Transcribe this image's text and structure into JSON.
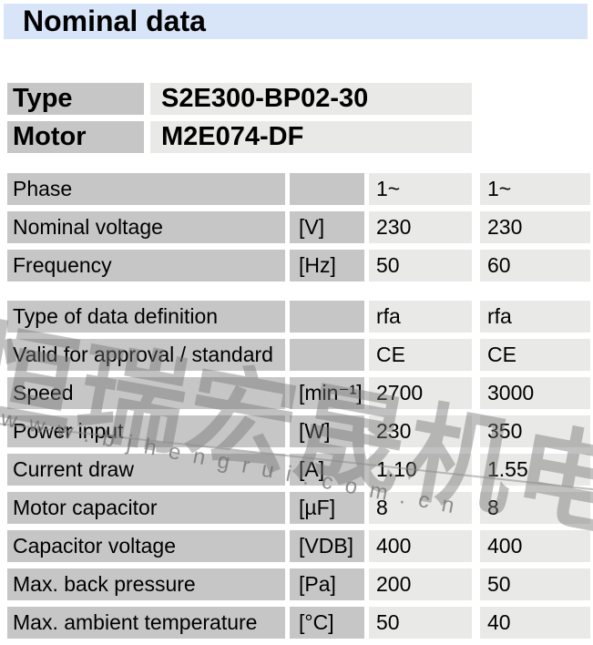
{
  "title": "Nominal data",
  "identification": {
    "rows": [
      {
        "label": "Type",
        "value": "S2E300-BP02-30"
      },
      {
        "label": "Motor",
        "value": "M2E074-DF"
      }
    ]
  },
  "electrical": {
    "rows": [
      {
        "label": "Phase",
        "unit": "",
        "v1": "1~",
        "v2": "1~"
      },
      {
        "label": "Nominal voltage",
        "unit": "[V]",
        "v1": "230",
        "v2": "230"
      },
      {
        "label": "Frequency",
        "unit": "[Hz]",
        "v1": "50",
        "v2": "60"
      }
    ]
  },
  "performance": {
    "rows": [
      {
        "label": "Type of data definition",
        "unit": "",
        "v1": "rfa",
        "v2": "rfa"
      },
      {
        "label": "Valid for approval / standard",
        "unit": "",
        "v1": "CE",
        "v2": "CE"
      },
      {
        "label": "Speed",
        "unit": "[min⁻¹]",
        "v1": "2700",
        "v2": "3000"
      },
      {
        "label": "Power input",
        "unit": "[W]",
        "v1": "230",
        "v2": "350"
      },
      {
        "label": "Current draw",
        "unit": "[A]",
        "v1": "1.10",
        "v2": "1.55"
      },
      {
        "label": "Motor capacitor",
        "unit": "[µF]",
        "v1": "8",
        "v2": "8"
      },
      {
        "label": "Capacitor voltage",
        "unit": "[VDB]",
        "v1": "400",
        "v2": "400"
      },
      {
        "label": "Max. back pressure",
        "unit": "[Pa]",
        "v1": "200",
        "v2": "50"
      },
      {
        "label": "Max. ambient temperature",
        "unit": "[°C]",
        "v1": "50",
        "v2": "40"
      }
    ]
  },
  "watermark": {
    "company_cn": "恒瑞宏晟机电",
    "website": "www.bjhengrui.com.cn"
  },
  "colors": {
    "header_bg": "#d8e4f8",
    "label_cell_bg": "#c6c6c6",
    "value_cell_bg": "#e9e9e7"
  }
}
